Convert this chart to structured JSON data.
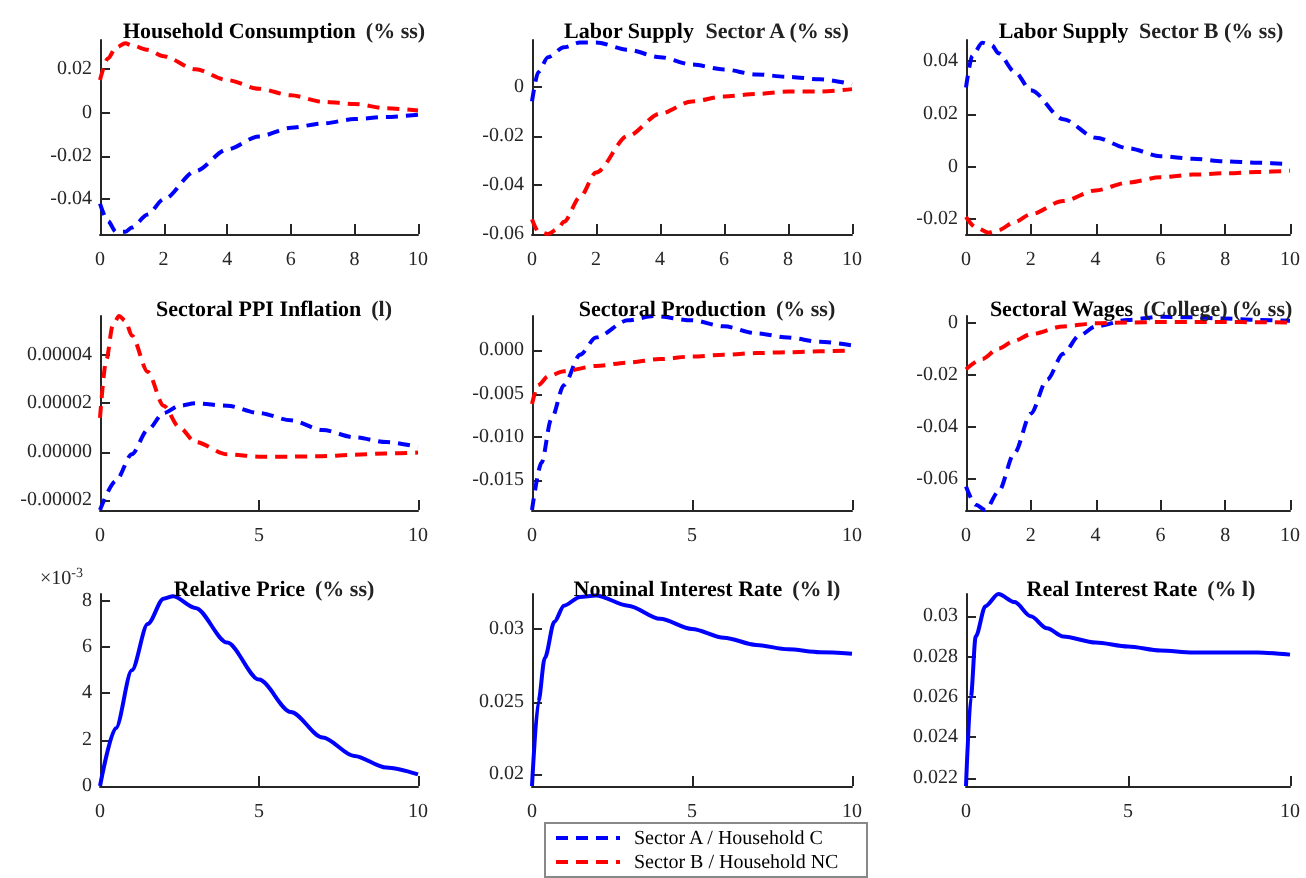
{
  "chart_data": [
    {
      "type": "line",
      "title": "Household Consumption",
      "subtitle": "(% ss)",
      "xlim": [
        0,
        10
      ],
      "xticks": [
        0,
        2,
        4,
        6,
        8,
        10
      ],
      "ylim": [
        -0.056,
        0.0335
      ],
      "yticks": [
        -0.04,
        -0.02,
        0,
        0.02
      ],
      "legend": "bottom",
      "series": [
        {
          "name": "Sector A / Household C",
          "color": "#0000ff",
          "line_style": "dashed",
          "x": [
            0,
            0.25,
            0.5,
            0.8,
            1,
            1.5,
            2,
            3,
            4,
            5,
            6,
            7,
            8,
            9,
            10
          ],
          "values": [
            -0.042,
            -0.05,
            -0.055,
            -0.055,
            -0.053,
            -0.047,
            -0.04,
            -0.027,
            -0.017,
            -0.011,
            -0.007,
            -0.005,
            -0.003,
            -0.002,
            -0.001
          ]
        },
        {
          "name": "Sector B / Household NC",
          "color": "#ff0000",
          "line_style": "dashed",
          "x": [
            0,
            0.25,
            0.5,
            0.8,
            1,
            1.5,
            2,
            3,
            4,
            5,
            6,
            7,
            8,
            9,
            10
          ],
          "values": [
            0.015,
            0.025,
            0.03,
            0.032,
            0.031,
            0.029,
            0.026,
            0.02,
            0.015,
            0.011,
            0.008,
            0.005,
            0.004,
            0.002,
            0.001
          ]
        }
      ]
    },
    {
      "type": "line",
      "title": "Labor Supply",
      "subtitle": "Sector A (% ss)",
      "xlim": [
        0,
        10
      ],
      "xticks": [
        0,
        2,
        4,
        6,
        8,
        10
      ],
      "ylim": [
        -0.06,
        0.019
      ],
      "yticks": [
        -0.06,
        -0.04,
        -0.02,
        0
      ],
      "series": [
        {
          "color": "#0000ff",
          "line_style": "dashed",
          "x": [
            0,
            0.2,
            0.5,
            1,
            1.5,
            2,
            3,
            4,
            5,
            6,
            7,
            8,
            9,
            10
          ],
          "values": [
            -0.006,
            0.006,
            0.012,
            0.016,
            0.018,
            0.018,
            0.015,
            0.012,
            0.009,
            0.007,
            0.005,
            0.004,
            0.003,
            0.001
          ]
        },
        {
          "color": "#ff0000",
          "line_style": "dashed",
          "x": [
            0,
            0.2,
            0.5,
            0.8,
            1,
            1.5,
            2,
            3,
            4,
            5,
            6,
            7,
            8,
            9,
            10
          ],
          "values": [
            -0.054,
            -0.059,
            -0.06,
            -0.058,
            -0.055,
            -0.045,
            -0.035,
            -0.02,
            -0.011,
            -0.006,
            -0.004,
            -0.003,
            -0.002,
            -0.002,
            -0.001
          ]
        }
      ]
    },
    {
      "type": "line",
      "title": "Labor Supply",
      "subtitle": "Sector B (% ss)",
      "xlim": [
        0,
        10
      ],
      "xticks": [
        0,
        2,
        4,
        6,
        8,
        10
      ],
      "ylim": [
        -0.0255,
        0.048
      ],
      "yticks": [
        -0.02,
        0,
        0.02,
        0.04
      ],
      "series": [
        {
          "color": "#0000ff",
          "line_style": "dashed",
          "x": [
            0,
            0.2,
            0.5,
            0.8,
            1,
            1.5,
            2,
            3,
            4,
            5,
            6,
            7,
            8,
            9,
            10
          ],
          "values": [
            0.03,
            0.042,
            0.047,
            0.046,
            0.043,
            0.036,
            0.029,
            0.018,
            0.011,
            0.007,
            0.004,
            0.003,
            0.002,
            0.0015,
            0.001
          ]
        },
        {
          "color": "#ff0000",
          "line_style": "dashed",
          "x": [
            0,
            0.3,
            0.7,
            1,
            1.5,
            2,
            3,
            4,
            5,
            6,
            7,
            8,
            9,
            10
          ],
          "values": [
            -0.019,
            -0.023,
            -0.025,
            -0.024,
            -0.021,
            -0.018,
            -0.013,
            -0.009,
            -0.006,
            -0.004,
            -0.003,
            -0.0025,
            -0.002,
            -0.0015
          ]
        }
      ]
    },
    {
      "type": "line",
      "title": "Sectoral PPI Inflation",
      "subtitle": "(l)",
      "xlim": [
        0,
        10
      ],
      "xticks": [
        0,
        5,
        10
      ],
      "ylim": [
        -2.4e-05,
        5.6e-05
      ],
      "yticks": [
        {
          "value": -2e-05,
          "label": "-0.00002"
        },
        {
          "value": 0,
          "label": "0.00000"
        },
        {
          "value": 2e-05,
          "label": "0.00002"
        },
        {
          "value": 4e-05,
          "label": "0.00004"
        }
      ],
      "series": [
        {
          "color": "#0000ff",
          "line_style": "dashed",
          "x": [
            0,
            0.5,
            1,
            1.5,
            2,
            2.5,
            3,
            4,
            5,
            6,
            7,
            8,
            9,
            10
          ],
          "values": [
            -2.4e-05,
            -1.2e-05,
            -1e-06,
            9e-06,
            1.6e-05,
            1.9e-05,
            2e-05,
            1.9e-05,
            1.6e-05,
            1.3e-05,
            9e-06,
            6e-06,
            4e-06,
            2e-06
          ]
        },
        {
          "color": "#ff0000",
          "line_style": "dashed",
          "x": [
            0,
            0.2,
            0.4,
            0.6,
            0.8,
            1,
            1.5,
            2,
            2.5,
            3,
            4,
            5,
            6,
            7,
            8,
            9,
            10
          ],
          "values": [
            1.4e-05,
            3.8e-05,
            5.2e-05,
            5.6e-05,
            5.4e-05,
            4.8e-05,
            3.3e-05,
            1.9e-05,
            1e-05,
            4e-06,
            -1e-06,
            -2e-06,
            -2e-06,
            -1.8e-06,
            -1.2e-06,
            -7e-07,
            -3e-07
          ]
        }
      ]
    },
    {
      "type": "line",
      "title": "Sectoral Production",
      "subtitle": "(% ss)",
      "xlim": [
        0,
        10
      ],
      "xticks": [
        0,
        5,
        10
      ],
      "ylim": [
        -0.0185,
        0.004
      ],
      "yticks": [
        {
          "value": -0.015,
          "label": "-0.015"
        },
        {
          "value": -0.01,
          "label": "-0.010"
        },
        {
          "value": -0.005,
          "label": "-0.005"
        },
        {
          "value": 0,
          "label": "0.000"
        }
      ],
      "series": [
        {
          "color": "#0000ff",
          "line_style": "dashed",
          "x": [
            0,
            0.3,
            0.6,
            1,
            1.5,
            2,
            3,
            3.8,
            5,
            6,
            7,
            8,
            9,
            10
          ],
          "values": [
            -0.0185,
            -0.013,
            -0.008,
            -0.004,
            -0.0005,
            0.0015,
            0.0035,
            0.004,
            0.0035,
            0.0028,
            0.002,
            0.0015,
            0.001,
            0.0006
          ]
        },
        {
          "color": "#ff0000",
          "line_style": "dashed",
          "x": [
            0,
            0.2,
            0.5,
            1,
            2,
            3,
            4,
            5,
            6,
            7,
            8,
            9,
            10
          ],
          "values": [
            -0.0062,
            -0.004,
            -0.003,
            -0.0024,
            -0.0018,
            -0.0014,
            -0.001,
            -0.0007,
            -0.0005,
            -0.0003,
            -0.0002,
            -0.0001,
            0
          ]
        }
      ]
    },
    {
      "type": "line",
      "title": "Sectoral Wages",
      "subtitle": "(College) (% ss)",
      "xlim": [
        0,
        10
      ],
      "xticks": [
        0,
        2,
        4,
        6,
        8,
        10
      ],
      "ylim": [
        -0.072,
        0.0025
      ],
      "yticks": [
        -0.06,
        -0.04,
        -0.02,
        0
      ],
      "series": [
        {
          "color": "#0000ff",
          "line_style": "dashed",
          "x": [
            0,
            0.3,
            0.6,
            1,
            1.5,
            2,
            2.5,
            3,
            3.5,
            4,
            5,
            6,
            7,
            8,
            9,
            10
          ],
          "values": [
            -0.063,
            -0.07,
            -0.072,
            -0.065,
            -0.05,
            -0.035,
            -0.022,
            -0.012,
            -0.005,
            -0.0015,
            0.001,
            0.0022,
            0.002,
            0.0015,
            0.001,
            0.0007
          ]
        },
        {
          "color": "#ff0000",
          "line_style": "dashed",
          "x": [
            0,
            0.5,
            1,
            1.5,
            2,
            3,
            4,
            5,
            6,
            7,
            8,
            9,
            10
          ],
          "values": [
            -0.018,
            -0.014,
            -0.01,
            -0.007,
            -0.0045,
            -0.0015,
            -0.0003,
            0,
            0.0002,
            0.0002,
            0.0002,
            0.0001,
            0
          ]
        }
      ]
    },
    {
      "type": "line",
      "title": "Relative Price",
      "subtitle": "(% ss)",
      "annotations": [
        "×10$^{-3}$"
      ],
      "xlim": [
        0,
        10
      ],
      "xticks": [
        0,
        5,
        10
      ],
      "ylim": [
        0,
        8.3
      ],
      "yticks": [
        0,
        2,
        4,
        6,
        8
      ],
      "series": [
        {
          "color": "#0000ff",
          "line_style": "solid",
          "x": [
            0,
            0.5,
            1,
            1.5,
            2,
            2.3,
            3,
            4,
            5,
            6,
            7,
            8,
            9,
            10
          ],
          "values": [
            0,
            2.5,
            5,
            7,
            8.1,
            8.2,
            7.7,
            6.2,
            4.6,
            3.2,
            2.1,
            1.3,
            0.8,
            0.5
          ]
        }
      ]
    },
    {
      "type": "line",
      "title": "Nominal Interest Rate",
      "subtitle": "(% l)",
      "xlim": [
        0,
        10
      ],
      "xticks": [
        0,
        5,
        10
      ],
      "ylim": [
        0.0192,
        0.0324
      ],
      "yticks": [
        0.02,
        0.025,
        0.03
      ],
      "series": [
        {
          "color": "#0000ff",
          "line_style": "solid",
          "x": [
            0,
            0.2,
            0.4,
            0.7,
            1,
            1.5,
            2,
            3,
            4,
            5,
            6,
            7,
            8,
            9,
            10
          ],
          "values": [
            0.0192,
            0.025,
            0.028,
            0.0305,
            0.0316,
            0.0322,
            0.0323,
            0.0316,
            0.0307,
            0.03,
            0.0294,
            0.0289,
            0.0286,
            0.0284,
            0.0283
          ]
        }
      ]
    },
    {
      "type": "line",
      "title": "Real Interest Rate",
      "subtitle": "(% l)",
      "xlim": [
        0,
        10
      ],
      "xticks": [
        0,
        5,
        10
      ],
      "ylim": [
        0.0216,
        0.0311
      ],
      "yticks": [
        0.022,
        0.024,
        0.026,
        0.028,
        0.03
      ],
      "series": [
        {
          "color": "#0000ff",
          "line_style": "solid",
          "x": [
            0,
            0.15,
            0.3,
            0.6,
            1,
            1.5,
            2,
            2.5,
            3,
            4,
            5,
            6,
            7,
            8,
            9,
            10
          ],
          "values": [
            0.0216,
            0.026,
            0.029,
            0.0305,
            0.0311,
            0.0307,
            0.03,
            0.0294,
            0.029,
            0.0287,
            0.0285,
            0.0283,
            0.0282,
            0.0282,
            0.0282,
            0.0281
          ]
        }
      ]
    }
  ]
}
